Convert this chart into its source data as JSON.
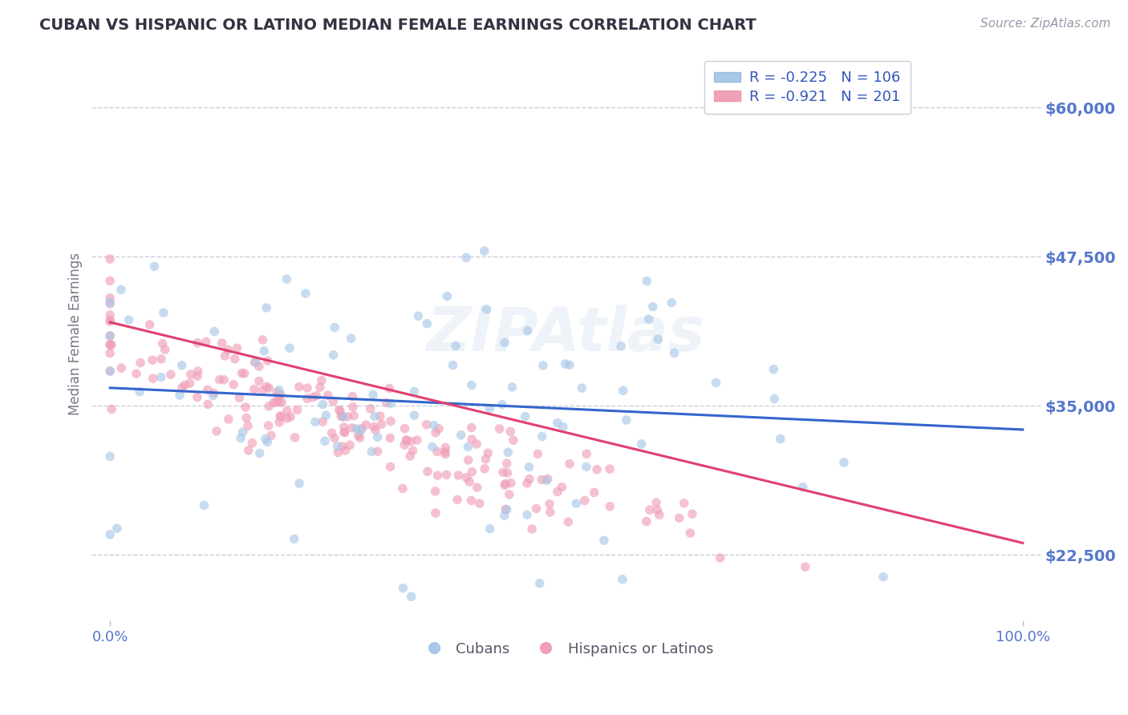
{
  "title": "CUBAN VS HISPANIC OR LATINO MEDIAN FEMALE EARNINGS CORRELATION CHART",
  "source_text": "Source: ZipAtlas.com",
  "ylabel": "Median Female Earnings",
  "watermark": "ZIPAtlas",
  "legend1_R": "-0.225",
  "legend1_N": "106",
  "legend2_R": "-0.921",
  "legend2_N": "201",
  "blue_color": "#aac8e8",
  "pink_color": "#f0a0b8",
  "line_blue": "#3366cc",
  "line_pink": "#e04070",
  "axis_color": "#5577cc",
  "ylim_min": 17000,
  "ylim_max": 65000,
  "yticks": [
    22500,
    35000,
    47500,
    60000
  ],
  "ytick_labels": [
    "$22,500",
    "$35,000",
    "$47,500",
    "$60,000"
  ],
  "xlim_min": -0.02,
  "xlim_max": 1.02,
  "xtick_labels": [
    "0.0%",
    "100.0%"
  ],
  "xtick_vals": [
    0.0,
    1.0
  ],
  "background_color": "#ffffff",
  "grid_color": "#ccccdd",
  "title_color": "#333344"
}
